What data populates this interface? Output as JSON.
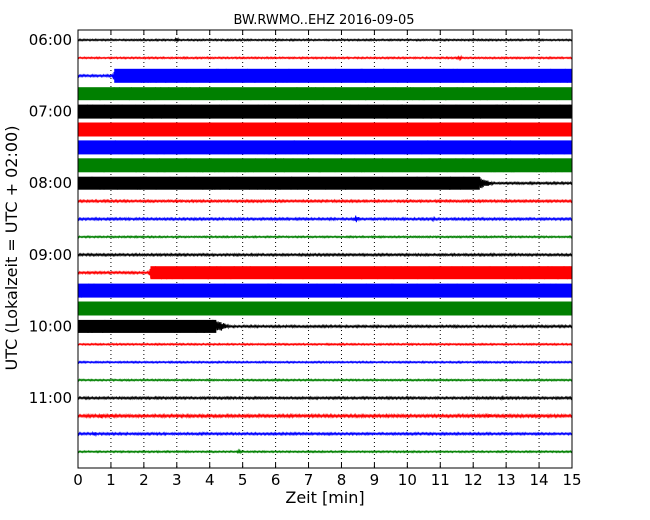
{
  "chart_data": {
    "type": "line",
    "title": "BW.RWMO..EHZ 2016-09-05",
    "xlabel": "Zeit  [min]",
    "ylabel": "UTC (Lokalzeit = UTC + 02:00)",
    "xlim": [
      0,
      15
    ],
    "x_ticks": [
      "0",
      "1",
      "2",
      "3",
      "4",
      "5",
      "6",
      "7",
      "8",
      "9",
      "10",
      "11",
      "12",
      "13",
      "14",
      "15"
    ],
    "y_tick_labels": [
      "06:00",
      "07:00",
      "08:00",
      "09:00",
      "10:00",
      "11:00"
    ],
    "y_tick_row_index": [
      0,
      4,
      8,
      12,
      16,
      20
    ],
    "grid": "x dotted",
    "row_start_utc": "06:00",
    "minutes_per_row": 15,
    "color_cycle": [
      "#000000",
      "#ff0000",
      "#0000ff",
      "#008000"
    ],
    "rows": [
      {
        "utc": "06:00",
        "amplitude": [
          [
            0,
            1.5
          ],
          [
            15,
            1.5
          ]
        ],
        "events": [
          [
            3,
            4
          ]
        ]
      },
      {
        "utc": "06:15",
        "amplitude": [
          [
            0,
            1.5
          ],
          [
            15,
            1.5
          ]
        ],
        "events": [
          [
            11.6,
            4
          ]
        ]
      },
      {
        "utc": "06:30",
        "amplitude": [
          [
            0,
            2
          ],
          [
            1.05,
            2
          ],
          [
            1.1,
            14
          ],
          [
            15,
            14
          ]
        ],
        "events": []
      },
      {
        "utc": "06:45",
        "amplitude": [
          [
            0,
            13
          ],
          [
            15,
            13
          ]
        ],
        "events": []
      },
      {
        "utc": "07:00",
        "amplitude": [
          [
            0,
            14
          ],
          [
            15,
            14
          ]
        ],
        "events": []
      },
      {
        "utc": "07:15",
        "amplitude": [
          [
            0,
            14
          ],
          [
            15,
            14
          ]
        ],
        "events": []
      },
      {
        "utc": "07:30",
        "amplitude": [
          [
            0,
            14
          ],
          [
            15,
            14
          ]
        ],
        "events": []
      },
      {
        "utc": "07:45",
        "amplitude": [
          [
            0,
            14
          ],
          [
            15,
            14
          ]
        ],
        "events": []
      },
      {
        "utc": "08:00",
        "amplitude": [
          [
            0,
            13
          ],
          [
            12.2,
            13
          ],
          [
            12.6,
            2
          ],
          [
            15,
            2
          ]
        ],
        "events": [
          [
            3.9,
            5
          ]
        ]
      },
      {
        "utc": "08:15",
        "amplitude": [
          [
            0,
            2
          ],
          [
            15,
            2
          ]
        ],
        "events": []
      },
      {
        "utc": "08:30",
        "amplitude": [
          [
            0,
            2
          ],
          [
            15,
            2
          ]
        ],
        "events": [
          [
            8.45,
            8
          ],
          [
            10.8,
            4
          ]
        ]
      },
      {
        "utc": "08:45",
        "amplitude": [
          [
            0,
            1.5
          ],
          [
            15,
            1.5
          ]
        ],
        "events": []
      },
      {
        "utc": "09:00",
        "amplitude": [
          [
            0,
            2
          ],
          [
            15,
            2
          ]
        ],
        "events": [
          [
            2.5,
            3
          ]
        ]
      },
      {
        "utc": "09:15",
        "amplitude": [
          [
            0,
            2
          ],
          [
            2.15,
            2
          ],
          [
            2.2,
            13
          ],
          [
            15,
            13
          ]
        ],
        "events": []
      },
      {
        "utc": "09:30",
        "amplitude": [
          [
            0,
            14
          ],
          [
            15,
            14
          ]
        ],
        "events": []
      },
      {
        "utc": "09:45",
        "amplitude": [
          [
            0,
            14
          ],
          [
            15,
            14
          ]
        ],
        "events": []
      },
      {
        "utc": "10:00",
        "amplitude": [
          [
            0,
            13
          ],
          [
            4.2,
            13
          ],
          [
            4.6,
            2
          ],
          [
            15,
            2
          ]
        ],
        "events": []
      },
      {
        "utc": "10:15",
        "amplitude": [
          [
            0,
            1.5
          ],
          [
            15,
            1.5
          ]
        ],
        "events": []
      },
      {
        "utc": "10:30",
        "amplitude": [
          [
            0,
            1.5
          ],
          [
            15,
            1.5
          ]
        ],
        "events": []
      },
      {
        "utc": "10:45",
        "amplitude": [
          [
            0,
            1.5
          ],
          [
            15,
            1.5
          ]
        ],
        "events": []
      },
      {
        "utc": "11:00",
        "amplitude": [
          [
            0,
            2
          ],
          [
            15,
            2
          ]
        ],
        "events": [
          [
            4,
            3
          ],
          [
            10,
            3
          ],
          [
            12.9,
            4
          ]
        ]
      },
      {
        "utc": "11:15",
        "amplitude": [
          [
            0,
            2.5
          ],
          [
            15,
            2.5
          ]
        ],
        "events": [
          [
            0.7,
            5
          ],
          [
            1.0,
            4
          ],
          [
            12.5,
            5
          ],
          [
            13.8,
            4
          ]
        ]
      },
      {
        "utc": "11:30",
        "amplitude": [
          [
            0,
            2
          ],
          [
            15,
            2
          ]
        ],
        "events": [
          [
            0.5,
            5
          ]
        ]
      },
      {
        "utc": "11:45",
        "amplitude": [
          [
            0,
            1.5
          ],
          [
            15,
            1.5
          ]
        ],
        "events": [
          [
            4.9,
            4
          ]
        ]
      }
    ]
  }
}
